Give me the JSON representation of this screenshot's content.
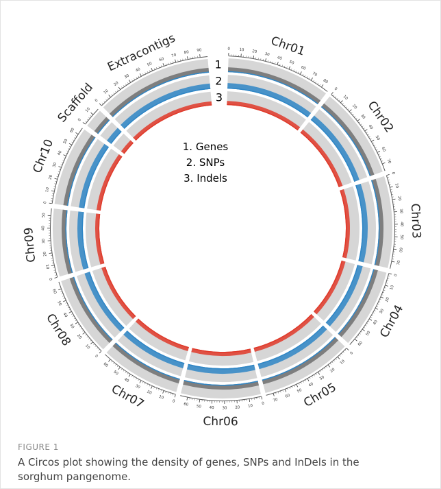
{
  "figure": {
    "track_numbers": [
      "1",
      "2",
      "3"
    ],
    "legend": [
      "1. Genes",
      "2. SNPs",
      "3. Indels"
    ],
    "segments": [
      {
        "name": "Chr01",
        "ticks": [
          0,
          10,
          20,
          30,
          40,
          50,
          60,
          70,
          80
        ]
      },
      {
        "name": "Chr02",
        "ticks": [
          0,
          10,
          20,
          30,
          40,
          50,
          60,
          70
        ]
      },
      {
        "name": "Chr03",
        "ticks": [
          0,
          10,
          20,
          30,
          40,
          50,
          60,
          70
        ]
      },
      {
        "name": "Chr04",
        "ticks": [
          0,
          10,
          20,
          30,
          40,
          50,
          60
        ]
      },
      {
        "name": "Chr05",
        "ticks": [
          0,
          10,
          20,
          30,
          40,
          50,
          60,
          70
        ]
      },
      {
        "name": "Chr06",
        "ticks": [
          0,
          10,
          20,
          30,
          40,
          50,
          60
        ]
      },
      {
        "name": "Chr07",
        "ticks": [
          0,
          10,
          20,
          30,
          40,
          50,
          60
        ]
      },
      {
        "name": "Chr08",
        "ticks": [
          0,
          10,
          20,
          30,
          40,
          50,
          60
        ]
      },
      {
        "name": "Chr09",
        "ticks": [
          0,
          10,
          20,
          30,
          40,
          50
        ]
      },
      {
        "name": "Chr10",
        "ticks": [
          0,
          10,
          20,
          30,
          40,
          50,
          60
        ]
      },
      {
        "name": "Scaffold",
        "ticks": [
          0,
          10
        ]
      },
      {
        "name": "Extracontigs",
        "ticks": [
          0,
          10,
          20,
          30,
          40,
          50,
          60,
          70,
          80,
          90
        ]
      }
    ]
  },
  "caption": {
    "label": "FIGURE 1",
    "text": [
      "A Circos plot showing the density of genes, SNPs and InDels in the",
      "sorghum pangenome."
    ]
  }
}
